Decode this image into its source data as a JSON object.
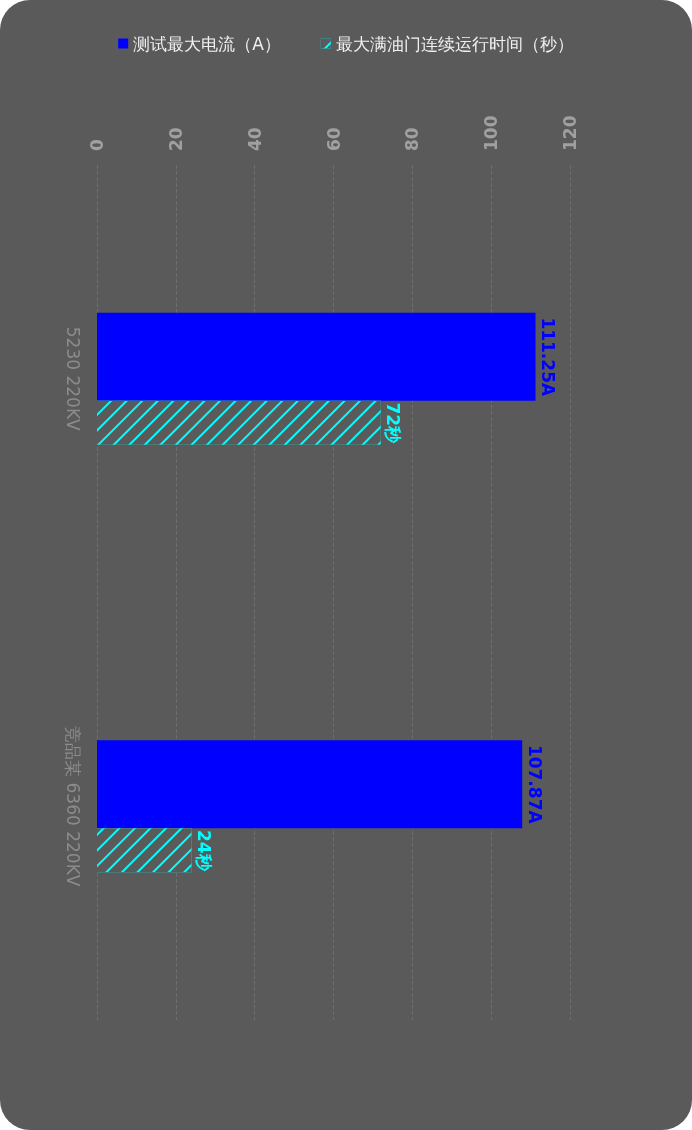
{
  "chart_data": {
    "type": "bar",
    "orientation": "horizontal",
    "categories": [
      "5230 220KV",
      "竞品某 6360 220KV"
    ],
    "series": [
      {
        "name": "测试最大电流（A）",
        "color": "#0000ff",
        "values": [
          111.25,
          107.87
        ],
        "value_labels": [
          "111.25A",
          "107.87A"
        ]
      },
      {
        "name": "最大满油门连续运行时间（秒）",
        "color": "#00ffff",
        "values": [
          72,
          24
        ],
        "value_labels": [
          "72秒",
          "24秒"
        ]
      }
    ],
    "xlim": [
      0,
      120
    ],
    "xticks": [
      0,
      20,
      40,
      60,
      80,
      100,
      120
    ],
    "grid": "x",
    "legend": "top"
  }
}
